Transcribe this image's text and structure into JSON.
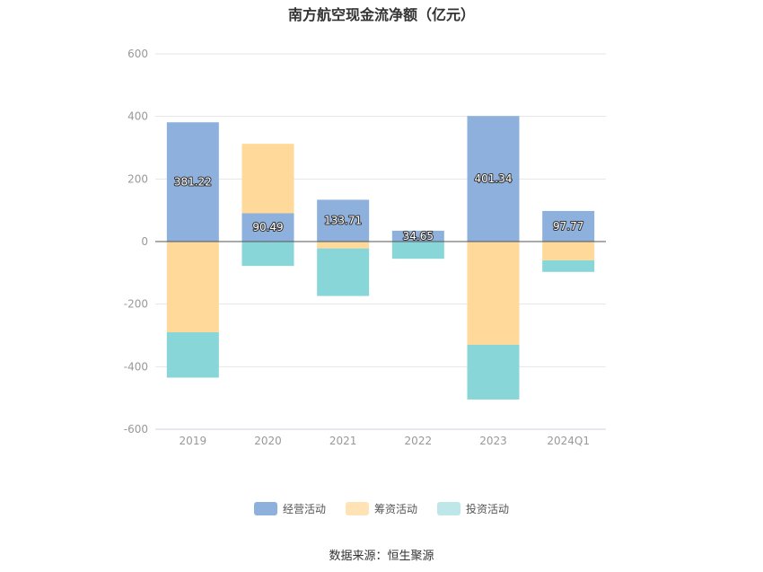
{
  "chart_data": {
    "type": "bar",
    "stacked": true,
    "title": "南方航空现金流净额（亿元）",
    "categories": [
      "2019",
      "2020",
      "2021",
      "2022",
      "2023",
      "2024Q1"
    ],
    "series": [
      {
        "name": "经营活动",
        "color": "#8eb0dc",
        "values": [
          381.22,
          90.49,
          133.71,
          34.65,
          401.34,
          97.77
        ]
      },
      {
        "name": "筹资活动",
        "color": "#ffd99a",
        "values": [
          -290,
          222,
          -22,
          0,
          -330,
          -60
        ]
      },
      {
        "name": "投资活动",
        "color": "#88d6d8",
        "values": [
          -145,
          -78,
          -152,
          -55,
          -175,
          -37
        ]
      }
    ],
    "data_labels": [
      "381.22",
      "90.49",
      "133.71",
      "34.65",
      "401.34",
      "97.77"
    ],
    "ylim": [
      -600,
      600
    ],
    "yticks": [
      600,
      400,
      200,
      0,
      -200,
      -400,
      -600
    ],
    "grid": true,
    "legend_position": "bottom"
  },
  "legend": {
    "items": [
      {
        "label": "经营活动",
        "color": "#8eb0dc"
      },
      {
        "label": "筹资活动",
        "color": "#ffe3b5"
      },
      {
        "label": "投资活动",
        "color": "#bde7e8"
      }
    ]
  },
  "footer": {
    "source": "数据来源：恒生聚源"
  }
}
